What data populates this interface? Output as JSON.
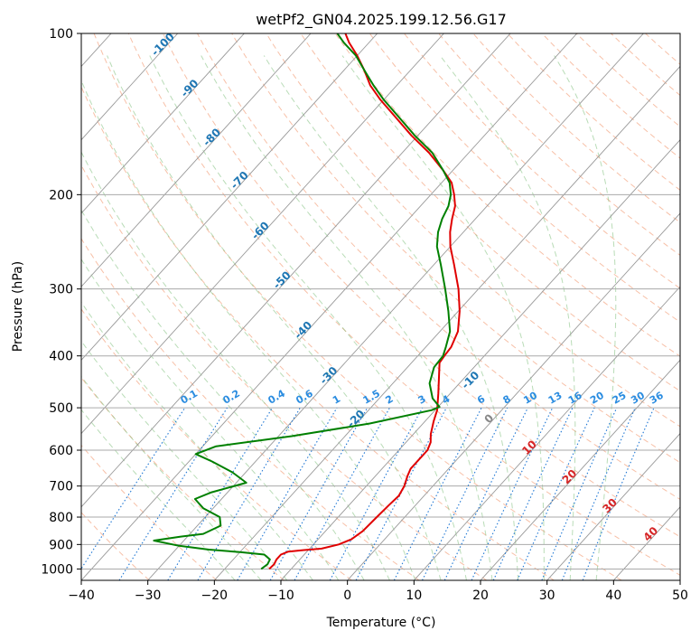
{
  "chart_data": {
    "type": "line",
    "subtype": "skew-t log-p diagram",
    "title": "wetPf2_GN04.2025.199.12.56.G17",
    "xlabel": "Temperature (°C)",
    "ylabel": "Pressure (hPa)",
    "xlim": [
      -40,
      50
    ],
    "ylim": [
      1050,
      100
    ],
    "y_scale": "log",
    "grid": true,
    "x_ticks": [
      -40,
      -30,
      -20,
      -10,
      0,
      10,
      20,
      30,
      40,
      50
    ],
    "y_ticks": [
      100,
      200,
      300,
      400,
      500,
      600,
      700,
      800,
      900,
      1000
    ],
    "series": [
      {
        "color": "#e00000",
        "points": [
          [
            -13.3,
            1000
          ],
          [
            -13.2,
            980
          ],
          [
            -13.5,
            960
          ],
          [
            -13.5,
            940
          ],
          [
            -12.8,
            928
          ],
          [
            -10.8,
            922
          ],
          [
            -8.2,
            916
          ],
          [
            -6.2,
            900
          ],
          [
            -5.0,
            880
          ],
          [
            -4.4,
            850
          ],
          [
            -4.2,
            800
          ],
          [
            -4.0,
            760
          ],
          [
            -3.8,
            730
          ],
          [
            -4.3,
            700
          ],
          [
            -5.2,
            670
          ],
          [
            -5.7,
            650
          ],
          [
            -5.7,
            620
          ],
          [
            -5.7,
            600
          ],
          [
            -6.3,
            580
          ],
          [
            -7.4,
            560
          ],
          [
            -8.7,
            530
          ],
          [
            -9.7,
            505
          ],
          [
            -11.8,
            470
          ],
          [
            -14.5,
            430
          ],
          [
            -15.8,
            412
          ],
          [
            -16.0,
            400
          ],
          [
            -16.2,
            385
          ],
          [
            -17.3,
            360
          ],
          [
            -19.8,
            330
          ],
          [
            -23.0,
            300
          ],
          [
            -27.0,
            270
          ],
          [
            -30.0,
            250
          ],
          [
            -32.0,
            235
          ],
          [
            -33.5,
            222
          ],
          [
            -34.8,
            210
          ],
          [
            -36.5,
            200
          ],
          [
            -38.5,
            190
          ],
          [
            -41.5,
            180
          ],
          [
            -46.0,
            167
          ],
          [
            -51.0,
            155
          ],
          [
            -56.0,
            143
          ],
          [
            -60.5,
            133
          ],
          [
            -64.0,
            125
          ],
          [
            -67.0,
            117
          ],
          [
            -70.0,
            110
          ],
          [
            -73.0,
            104
          ],
          [
            -74.8,
            100
          ]
        ]
      },
      {
        "color": "#008000",
        "points": [
          [
            -14.5,
            1000
          ],
          [
            -14.2,
            980
          ],
          [
            -14.5,
            960
          ],
          [
            -16.0,
            940
          ],
          [
            -20.0,
            930
          ],
          [
            -25.0,
            920
          ],
          [
            -30.0,
            905
          ],
          [
            -34.5,
            885
          ],
          [
            -31.0,
            870
          ],
          [
            -28.0,
            860
          ],
          [
            -26.5,
            830
          ],
          [
            -27.8,
            800
          ],
          [
            -31.5,
            770
          ],
          [
            -34.0,
            740
          ],
          [
            -32.5,
            720
          ],
          [
            -28.5,
            690
          ],
          [
            -32.0,
            660
          ],
          [
            -36.5,
            630
          ],
          [
            -40.0,
            610
          ],
          [
            -38.0,
            590
          ],
          [
            -28.0,
            565
          ],
          [
            -18.0,
            535
          ],
          [
            -10.5,
            505
          ],
          [
            -9.8,
            498
          ],
          [
            -12.0,
            480
          ],
          [
            -14.5,
            450
          ],
          [
            -16.0,
            420
          ],
          [
            -16.2,
            400
          ],
          [
            -17.0,
            385
          ],
          [
            -18.5,
            360
          ],
          [
            -21.5,
            330
          ],
          [
            -25.0,
            300
          ],
          [
            -29.0,
            270
          ],
          [
            -32.0,
            250
          ],
          [
            -33.8,
            235
          ],
          [
            -35.0,
            222
          ],
          [
            -35.8,
            210
          ],
          [
            -37.0,
            200
          ],
          [
            -38.8,
            190
          ],
          [
            -41.5,
            180
          ],
          [
            -45.5,
            167
          ],
          [
            -50.5,
            155
          ],
          [
            -55.5,
            143
          ],
          [
            -60.0,
            133
          ],
          [
            -63.5,
            125
          ],
          [
            -67.0,
            117
          ],
          [
            -70.2,
            110
          ],
          [
            -73.8,
            104
          ],
          [
            -76.0,
            100
          ]
        ]
      }
    ],
    "isotherm_labels": [
      "-100",
      "-90",
      "-80",
      "-70",
      "-60",
      "-50",
      "-40",
      "-30",
      "-20",
      "-10",
      "0",
      "10",
      "20",
      "30",
      "40"
    ],
    "mixing_ratio_labels": [
      "0.1",
      "0.2",
      "0.4",
      "0.6",
      "1",
      "1.5",
      "2",
      "3",
      "4",
      "6",
      "8",
      "10",
      "13",
      "16",
      "20",
      "25",
      "30",
      "36"
    ]
  }
}
